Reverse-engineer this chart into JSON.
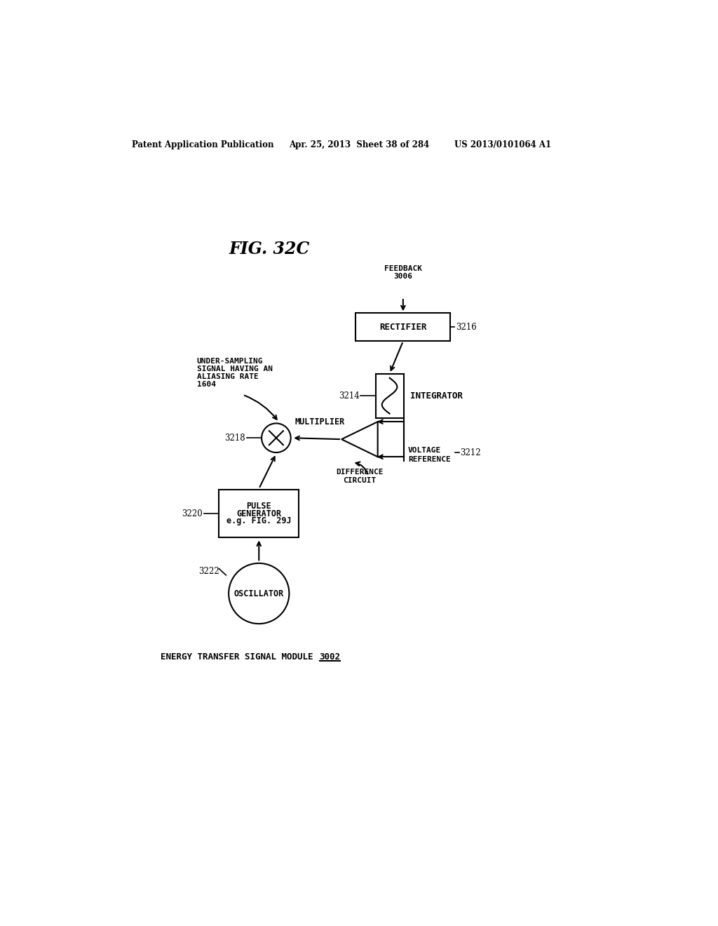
{
  "bg_color": "#ffffff",
  "header_left": "Patent Application Publication",
  "header_mid": "Apr. 25, 2013  Sheet 38 of 284",
  "header_right": "US 2013/0101064 A1",
  "fig_title": "FIG. 32C",
  "bottom_label_main": "ENERGY TRANSFER SIGNAL MODULE",
  "bottom_label_ref": "3002",
  "rectifier_label": "RECTIFIER",
  "rectifier_ref": "3216",
  "integrator_label": "INTEGRATOR",
  "integrator_ref": "3214",
  "feedback_label": "FEEDBACK\n3006",
  "multiplier_label": "MULTIPLIER",
  "multiplier_ref": "3218",
  "pulse_gen_line1": "PULSE",
  "pulse_gen_line2": "GENERATOR",
  "pulse_gen_line3": "e.g. FIG. 29J",
  "pulse_gen_ref": "3220",
  "oscillator_label": "OSCILLATOR",
  "oscillator_ref": "3222",
  "diff_circuit_line1": "DIFFERENCE",
  "diff_circuit_line2": "CIRCUIT",
  "voltage_ref_line1": "VOLTAGE",
  "voltage_ref_line2": "REFERENCE",
  "voltage_ref_ref": "3212",
  "under_sampling_line1": "UNDER-SAMPLING",
  "under_sampling_line2": "SIGNAL HAVING AN",
  "under_sampling_line3": "ALIASING RATE",
  "under_sampling_line4": "1604"
}
